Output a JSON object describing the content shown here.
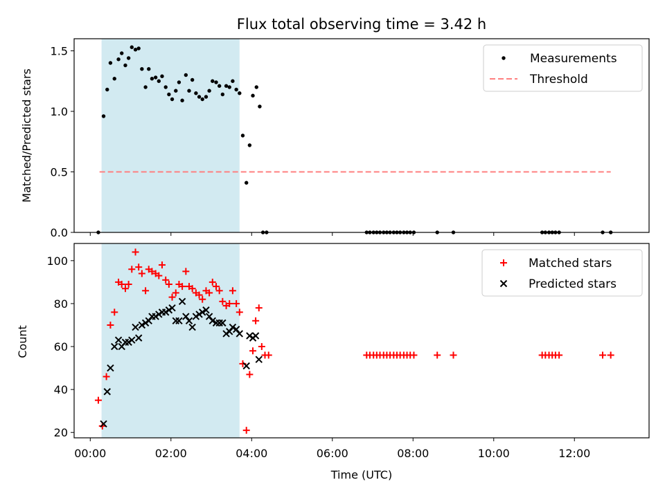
{
  "chart_data": {
    "title": "Flux total observing time = 3.42 h",
    "xlabel": "Time (UTC)",
    "xlim_hours": [
      -0.4,
      13.85
    ],
    "x_ticks": [
      {
        "h": 0,
        "label": "00:00"
      },
      {
        "h": 2,
        "label": "02:00"
      },
      {
        "h": 4,
        "label": "04:00"
      },
      {
        "h": 6,
        "label": "06:00"
      },
      {
        "h": 8,
        "label": "08:00"
      },
      {
        "h": 10,
        "label": "10:00"
      },
      {
        "h": 12,
        "label": "12:00"
      }
    ],
    "observing_window_hours": [
      0.28,
      3.7
    ],
    "colors": {
      "window": "#add8e6",
      "measurements": "#000000",
      "threshold": "#ff7f7f",
      "matched": "#ff0000",
      "predicted": "#000000"
    },
    "top": {
      "type": "scatter",
      "ylabel": "Matched/Predicted stars",
      "ylim": [
        0,
        1.6
      ],
      "y_ticks": [
        0.0,
        0.5,
        1.0,
        1.5
      ],
      "y_tick_labels": [
        "0.0",
        "0.5",
        "1.0",
        "1.5"
      ],
      "threshold": {
        "name": "Threshold",
        "y": 0.5,
        "x_range": [
          0.23,
          12.9
        ]
      },
      "legend": {
        "position": "upper-right",
        "entries": [
          "Measurements",
          "Threshold"
        ]
      },
      "series": [
        {
          "name": "Measurements",
          "points": [
            [
              0.2,
              0
            ],
            [
              0.33,
              0.96
            ],
            [
              0.42,
              1.18
            ],
            [
              0.5,
              1.4
            ],
            [
              0.6,
              1.27
            ],
            [
              0.7,
              1.43
            ],
            [
              0.78,
              1.48
            ],
            [
              0.87,
              1.38
            ],
            [
              0.95,
              1.44
            ],
            [
              1.03,
              1.53
            ],
            [
              1.12,
              1.51
            ],
            [
              1.2,
              1.52
            ],
            [
              1.28,
              1.35
            ],
            [
              1.37,
              1.2
            ],
            [
              1.45,
              1.35
            ],
            [
              1.53,
              1.27
            ],
            [
              1.62,
              1.28
            ],
            [
              1.7,
              1.25
            ],
            [
              1.78,
              1.29
            ],
            [
              1.87,
              1.2
            ],
            [
              1.95,
              1.14
            ],
            [
              2.03,
              1.1
            ],
            [
              2.12,
              1.17
            ],
            [
              2.2,
              1.24
            ],
            [
              2.28,
              1.09
            ],
            [
              2.37,
              1.3
            ],
            [
              2.45,
              1.17
            ],
            [
              2.53,
              1.26
            ],
            [
              2.62,
              1.15
            ],
            [
              2.7,
              1.12
            ],
            [
              2.78,
              1.1
            ],
            [
              2.87,
              1.12
            ],
            [
              2.95,
              1.17
            ],
            [
              3.03,
              1.25
            ],
            [
              3.12,
              1.24
            ],
            [
              3.2,
              1.21
            ],
            [
              3.28,
              1.14
            ],
            [
              3.37,
              1.21
            ],
            [
              3.45,
              1.2
            ],
            [
              3.53,
              1.25
            ],
            [
              3.62,
              1.18
            ],
            [
              3.7,
              1.15
            ],
            [
              3.78,
              0.8
            ],
            [
              3.87,
              0.41
            ],
            [
              3.95,
              0.72
            ],
            [
              4.03,
              1.13
            ],
            [
              4.12,
              1.2
            ],
            [
              4.2,
              1.04
            ],
            [
              4.28,
              0
            ],
            [
              4.37,
              0
            ],
            [
              6.85,
              0
            ],
            [
              6.93,
              0
            ],
            [
              7.02,
              0
            ],
            [
              7.1,
              0
            ],
            [
              7.18,
              0
            ],
            [
              7.27,
              0
            ],
            [
              7.35,
              0
            ],
            [
              7.43,
              0
            ],
            [
              7.52,
              0
            ],
            [
              7.6,
              0
            ],
            [
              7.68,
              0
            ],
            [
              7.77,
              0
            ],
            [
              7.85,
              0
            ],
            [
              7.93,
              0
            ],
            [
              8.02,
              0
            ],
            [
              8.6,
              0
            ],
            [
              9.0,
              0
            ],
            [
              11.2,
              0
            ],
            [
              11.28,
              0
            ],
            [
              11.37,
              0
            ],
            [
              11.45,
              0
            ],
            [
              11.53,
              0
            ],
            [
              11.62,
              0
            ],
            [
              12.7,
              0
            ],
            [
              12.9,
              0
            ]
          ]
        }
      ]
    },
    "bottom": {
      "type": "scatter",
      "ylabel": "Count",
      "ylim": [
        17.5,
        108
      ],
      "y_ticks": [
        20,
        40,
        60,
        80,
        100
      ],
      "y_tick_labels": [
        "20",
        "40",
        "60",
        "80",
        "100"
      ],
      "legend": {
        "position": "upper-right",
        "entries": [
          "Matched stars",
          "Predicted stars"
        ]
      },
      "series": [
        {
          "name": "Matched stars",
          "marker": "plus",
          "points": [
            [
              0.2,
              35
            ],
            [
              0.3,
              23
            ],
            [
              0.4,
              46
            ],
            [
              0.5,
              70
            ],
            [
              0.6,
              76
            ],
            [
              0.7,
              90
            ],
            [
              0.78,
              89
            ],
            [
              0.87,
              87
            ],
            [
              0.95,
              89
            ],
            [
              1.03,
              96
            ],
            [
              1.12,
              104
            ],
            [
              1.2,
              97
            ],
            [
              1.28,
              94
            ],
            [
              1.37,
              86
            ],
            [
              1.45,
              96
            ],
            [
              1.53,
              95
            ],
            [
              1.62,
              94
            ],
            [
              1.7,
              93
            ],
            [
              1.78,
              98
            ],
            [
              1.87,
              91
            ],
            [
              1.95,
              89
            ],
            [
              2.03,
              83
            ],
            [
              2.12,
              85
            ],
            [
              2.2,
              89
            ],
            [
              2.28,
              88
            ],
            [
              2.37,
              95
            ],
            [
              2.45,
              88
            ],
            [
              2.53,
              87
            ],
            [
              2.62,
              85
            ],
            [
              2.7,
              84
            ],
            [
              2.78,
              82
            ],
            [
              2.87,
              86
            ],
            [
              2.95,
              85
            ],
            [
              3.03,
              90
            ],
            [
              3.12,
              88
            ],
            [
              3.2,
              86
            ],
            [
              3.28,
              81
            ],
            [
              3.37,
              79
            ],
            [
              3.45,
              80
            ],
            [
              3.53,
              86
            ],
            [
              3.62,
              80
            ],
            [
              3.7,
              76
            ],
            [
              3.78,
              52
            ],
            [
              3.87,
              21
            ],
            [
              3.95,
              47
            ],
            [
              4.03,
              58
            ],
            [
              4.1,
              72
            ],
            [
              4.18,
              78
            ],
            [
              4.25,
              60
            ],
            [
              4.33,
              56
            ],
            [
              4.42,
              56
            ],
            [
              6.85,
              56
            ],
            [
              6.93,
              56
            ],
            [
              7.02,
              56
            ],
            [
              7.1,
              56
            ],
            [
              7.18,
              56
            ],
            [
              7.27,
              56
            ],
            [
              7.35,
              56
            ],
            [
              7.43,
              56
            ],
            [
              7.52,
              56
            ],
            [
              7.6,
              56
            ],
            [
              7.68,
              56
            ],
            [
              7.77,
              56
            ],
            [
              7.85,
              56
            ],
            [
              7.93,
              56
            ],
            [
              8.02,
              56
            ],
            [
              8.6,
              56
            ],
            [
              9.0,
              56
            ],
            [
              11.2,
              56
            ],
            [
              11.28,
              56
            ],
            [
              11.37,
              56
            ],
            [
              11.45,
              56
            ],
            [
              11.53,
              56
            ],
            [
              11.62,
              56
            ],
            [
              12.7,
              56
            ],
            [
              12.9,
              56
            ]
          ]
        },
        {
          "name": "Predicted stars",
          "marker": "x",
          "points": [
            [
              0.33,
              24
            ],
            [
              0.42,
              39
            ],
            [
              0.5,
              50
            ],
            [
              0.6,
              60
            ],
            [
              0.7,
              63
            ],
            [
              0.78,
              60
            ],
            [
              0.87,
              62
            ],
            [
              0.95,
              62
            ],
            [
              1.03,
              63
            ],
            [
              1.12,
              69
            ],
            [
              1.2,
              64
            ],
            [
              1.28,
              70
            ],
            [
              1.37,
              71
            ],
            [
              1.45,
              72
            ],
            [
              1.53,
              74
            ],
            [
              1.62,
              74
            ],
            [
              1.7,
              75
            ],
            [
              1.78,
              76
            ],
            [
              1.87,
              76
            ],
            [
              1.95,
              77
            ],
            [
              2.03,
              78
            ],
            [
              2.12,
              72
            ],
            [
              2.2,
              72
            ],
            [
              2.28,
              81
            ],
            [
              2.37,
              74
            ],
            [
              2.45,
              72
            ],
            [
              2.53,
              69
            ],
            [
              2.62,
              74
            ],
            [
              2.7,
              75
            ],
            [
              2.78,
              76
            ],
            [
              2.87,
              77
            ],
            [
              2.95,
              74
            ],
            [
              3.03,
              72
            ],
            [
              3.12,
              71
            ],
            [
              3.2,
              71
            ],
            [
              3.28,
              71
            ],
            [
              3.37,
              66
            ],
            [
              3.45,
              67
            ],
            [
              3.53,
              69
            ],
            [
              3.62,
              68
            ],
            [
              3.7,
              66
            ],
            [
              3.87,
              51
            ],
            [
              3.95,
              65
            ],
            [
              4.03,
              64
            ],
            [
              4.1,
              65
            ],
            [
              4.18,
              54
            ]
          ]
        }
      ]
    }
  }
}
